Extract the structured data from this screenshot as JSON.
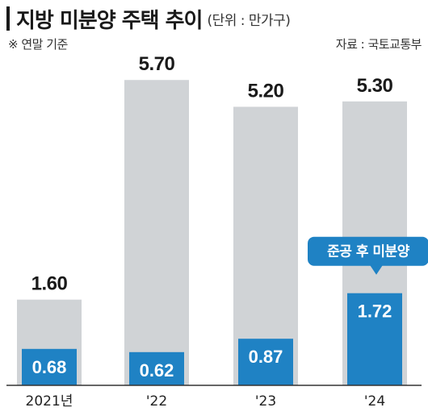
{
  "header": {
    "title": "지방 미분양 주택 추이",
    "unit": "(단위 : 만가구)",
    "note": "※ 연말 기준",
    "source": "자료 : 국토교통부"
  },
  "chart_data": {
    "type": "bar",
    "categories": [
      "2021년",
      "'22",
      "'23",
      "'24"
    ],
    "series": [
      {
        "name": "",
        "values": [
          1.6,
          5.7,
          5.2,
          5.3
        ],
        "labels": [
          "1.60",
          "5.70",
          "5.20",
          "5.30"
        ],
        "color": "#d0d3d6"
      },
      {
        "name": "준공 후 미분양",
        "values": [
          0.68,
          0.62,
          0.87,
          1.72
        ],
        "labels": [
          "0.68",
          "0.62",
          "0.87",
          "1.72"
        ],
        "color": "#1f82c4"
      }
    ],
    "annotation": {
      "text": "준공 후 미분양",
      "category": "'24"
    },
    "ylim": [
      0,
      6.2
    ],
    "grid": false,
    "title": "지방 미분양 주택 추이",
    "xlabel": "",
    "ylabel": ""
  }
}
